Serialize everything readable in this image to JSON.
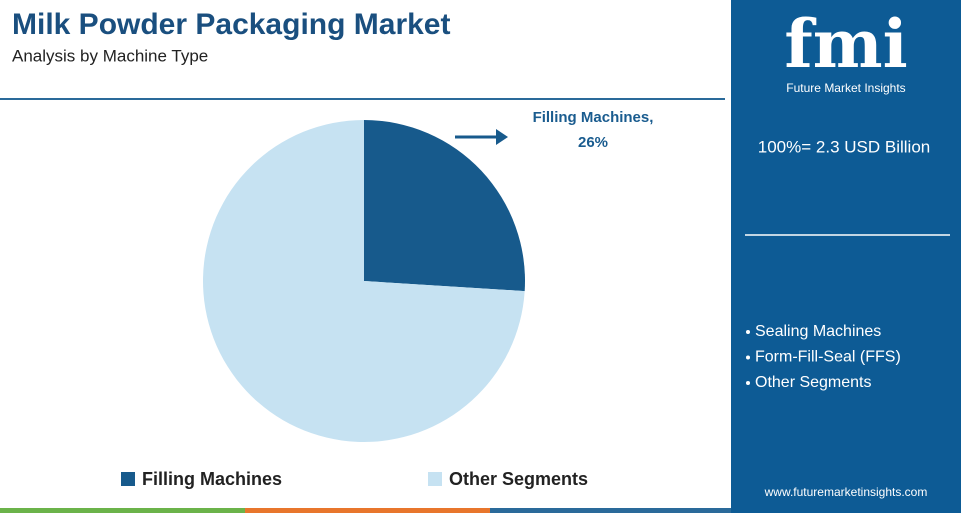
{
  "chart_data": {
    "type": "pie",
    "title": "Milk Powder Packaging Market",
    "subtitle": "Analysis by Machine Type",
    "categories": [
      "Filling Machines",
      "Other Segments"
    ],
    "values": [
      26,
      74
    ],
    "value_labels": [
      "Filling Machines, 26%",
      null
    ],
    "colors": [
      "#175a8c",
      "#c6e2f2"
    ],
    "legend": "bottom"
  },
  "panel": {
    "logo": "fmi",
    "brand": "Future Market Insights",
    "total": "100%= 2.3 USD Billion",
    "items": [
      "Sealing Machines",
      "Form-Fill-Seal (FFS)",
      "Other Segments"
    ],
    "url": "www.futuremarketinsights.com"
  }
}
